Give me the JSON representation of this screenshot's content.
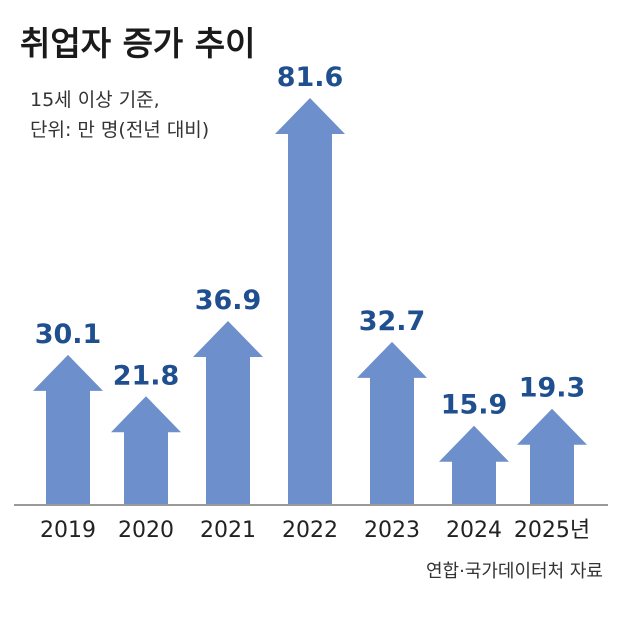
{
  "chart_data": {
    "type": "bar",
    "title": "취업자 증가 추이",
    "subtitle_lines": [
      "15세 이상 기준,",
      "단위: 만 명(전년 대비)"
    ],
    "categories": [
      "2019",
      "2020",
      "2021",
      "2022",
      "2023",
      "2024",
      "2025년"
    ],
    "values": [
      30.1,
      21.8,
      36.9,
      81.6,
      32.7,
      15.9,
      19.3
    ],
    "value_labels": [
      "30.1",
      "21.8",
      "36.9",
      "81.6",
      "32.7",
      "15.9",
      "19.3"
    ],
    "bar_shape": "arrow-up",
    "bar_color": "#6d8fcb",
    "label_color": "#1f4f8f",
    "axis_color": "#9a9a9a",
    "ylim": [
      0,
      81.6
    ],
    "grid": false,
    "source": "연합·국가데이터처 자료"
  }
}
